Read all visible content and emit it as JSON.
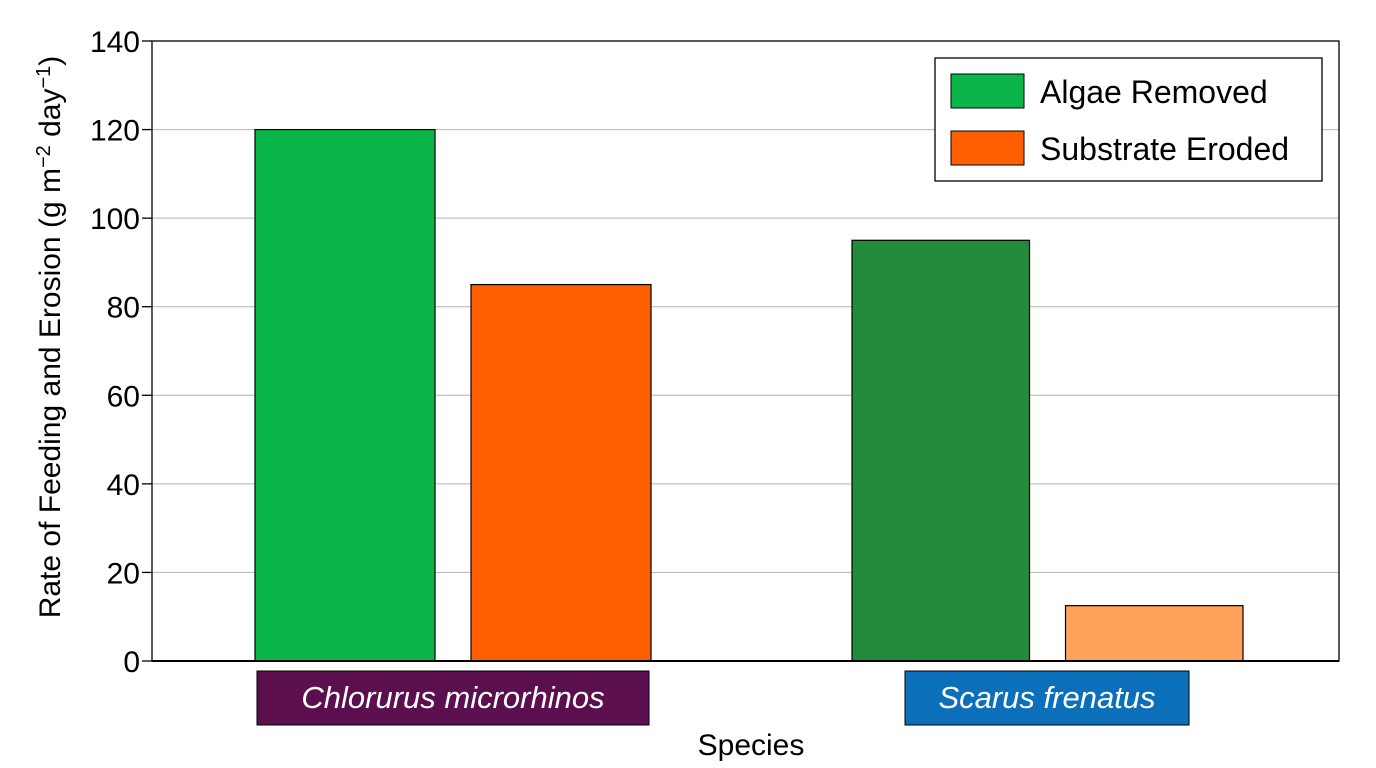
{
  "chart_data": {
    "type": "bar",
    "title": "",
    "xlabel": "Species",
    "ylabel_main": "Rate of Feeding and Erosion (g m",
    "ylabel_sup1": "−2",
    "ylabel_mid": " day",
    "ylabel_sup2": "−1",
    "ylabel_end": ")",
    "categories": [
      "Chlorurus microrhinos",
      "Scarus frenatus"
    ],
    "category_colors": [
      "#5c0f4f",
      "#0b6fba"
    ],
    "series": [
      {
        "name": "Algae Removed",
        "values": [
          120,
          95
        ],
        "colors": [
          "#0ab64a",
          "#228b3c"
        ]
      },
      {
        "name": "Substrate Eroded",
        "values": [
          85,
          12.5
        ],
        "colors": [
          "#ff5f00",
          "#ffa35c"
        ]
      }
    ],
    "ylim": [
      0,
      140
    ],
    "yticks": [
      0,
      20,
      40,
      60,
      80,
      100,
      120,
      140
    ],
    "grid": true,
    "legend_position": "top-right"
  }
}
